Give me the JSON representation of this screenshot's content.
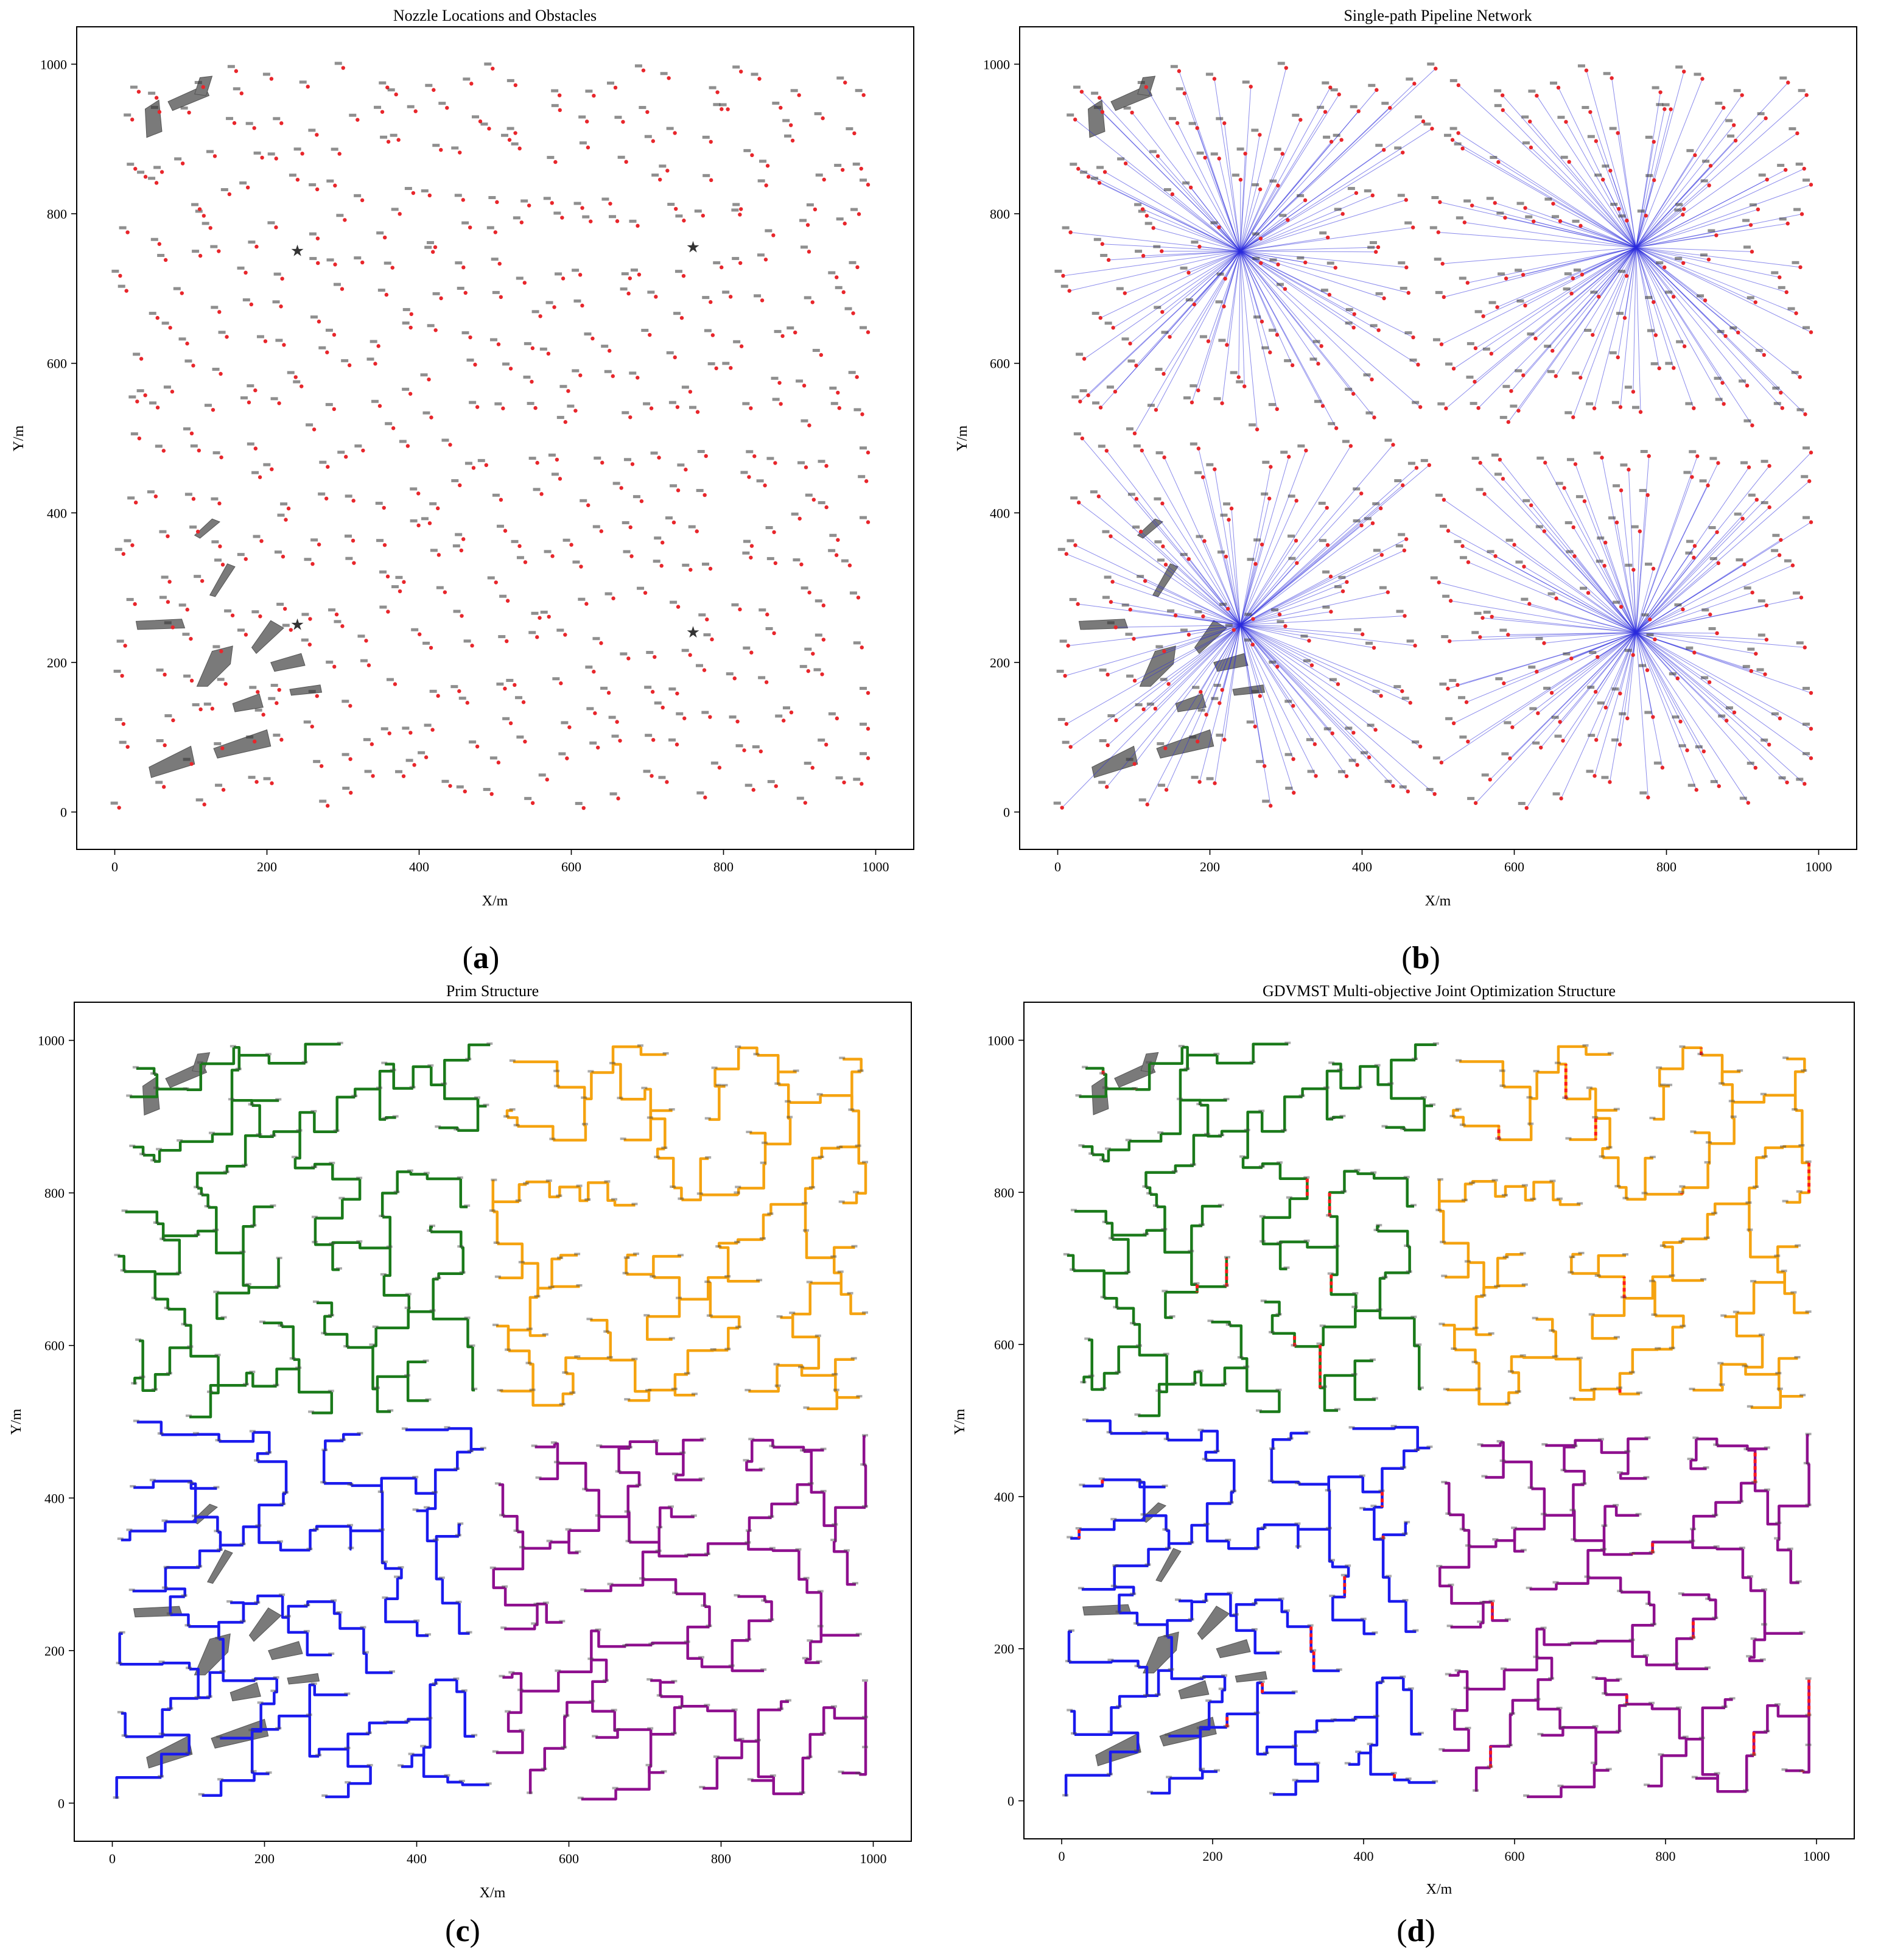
{
  "figure": {
    "panel_labels": [
      {
        "open": "(",
        "letter": "a",
        "close": ")"
      },
      {
        "open": "(",
        "letter": "b",
        "close": ")"
      },
      {
        "open": "(",
        "letter": "c",
        "close": ")"
      },
      {
        "open": "(",
        "letter": "d",
        "close": ")"
      }
    ]
  },
  "chart_data": [
    {
      "type": "scatter",
      "title": "Nozzle Locations and Obstacles",
      "xlabel": "X/m",
      "ylabel": "Y/m",
      "xlim": [
        -50,
        1050
      ],
      "ylim": [
        -50,
        1050
      ],
      "xticks": [
        0,
        200,
        400,
        600,
        800,
        1000
      ],
      "yticks": [
        0,
        200,
        400,
        600,
        800,
        1000
      ],
      "x_tick_labels": [
        "0",
        "200",
        "400",
        "600",
        "800",
        "1000"
      ],
      "y_tick_labels": [
        "0",
        "200",
        "400",
        "600",
        "800",
        "1000"
      ],
      "grid": false,
      "nozzle_count": 500,
      "nozzle_color": "#e8262b",
      "label_color": "#333333",
      "obstacle_color": "#7a7a7a",
      "source_points": [
        [
          240,
          750
        ],
        [
          760,
          755
        ],
        [
          240,
          250
        ],
        [
          760,
          240
        ]
      ],
      "source_marker": "star",
      "obstacles": [
        [
          [
            40,
            940
          ],
          [
            58,
            952
          ],
          [
            62,
            910
          ],
          [
            42,
            902
          ]
        ],
        [
          [
            70,
            950
          ],
          [
            118,
            972
          ],
          [
            124,
            958
          ],
          [
            76,
            938
          ]
        ],
        [
          [
            105,
            960
          ],
          [
            112,
            982
          ],
          [
            128,
            984
          ],
          [
            120,
            958
          ]
        ],
        [
          [
            105,
            370
          ],
          [
            128,
            392
          ],
          [
            138,
            388
          ],
          [
            112,
            366
          ]
        ],
        [
          [
            125,
            290
          ],
          [
            148,
            332
          ],
          [
            158,
            328
          ],
          [
            132,
            288
          ]
        ],
        [
          [
            28,
            255
          ],
          [
            88,
            258
          ],
          [
            92,
            246
          ],
          [
            30,
            244
          ]
        ],
        [
          [
            108,
            168
          ],
          [
            128,
            215
          ],
          [
            155,
            222
          ],
          [
            152,
            198
          ],
          [
            122,
            168
          ]
        ],
        [
          [
            180,
            220
          ],
          [
            205,
            256
          ],
          [
            222,
            246
          ],
          [
            186,
            212
          ]
        ],
        [
          [
            205,
            200
          ],
          [
            245,
            212
          ],
          [
            250,
            196
          ],
          [
            210,
            188
          ]
        ],
        [
          [
            230,
            164
          ],
          [
            270,
            170
          ],
          [
            272,
            160
          ],
          [
            232,
            156
          ]
        ],
        [
          [
            155,
            145
          ],
          [
            190,
            158
          ],
          [
            195,
            140
          ],
          [
            158,
            134
          ]
        ],
        [
          [
            45,
            60
          ],
          [
            100,
            88
          ],
          [
            105,
            64
          ],
          [
            48,
            46
          ]
        ],
        [
          [
            130,
            85
          ],
          [
            200,
            110
          ],
          [
            205,
            88
          ],
          [
            135,
            72
          ]
        ]
      ]
    },
    {
      "type": "scatter",
      "title": "Single-path Pipeline Network",
      "xlabel": "X/m",
      "ylabel": "Y/m",
      "xlim": [
        -50,
        1050
      ],
      "ylim": [
        -50,
        1050
      ],
      "xticks": [
        0,
        200,
        400,
        600,
        800,
        1000
      ],
      "yticks": [
        0,
        200,
        400,
        600,
        800,
        1000
      ],
      "x_tick_labels": [
        "0",
        "200",
        "400",
        "600",
        "800",
        "1000"
      ],
      "y_tick_labels": [
        "0",
        "200",
        "400",
        "600",
        "800",
        "1000"
      ],
      "grid": false,
      "line_color": "#2b2bdc",
      "hubs": [
        [
          240,
          750
        ],
        [
          760,
          755
        ],
        [
          240,
          250
        ],
        [
          760,
          240
        ]
      ]
    },
    {
      "type": "line",
      "title": "Prim Structure",
      "xlabel": "X/m",
      "ylabel": "Y/m",
      "xlim": [
        -50,
        1050
      ],
      "ylim": [
        -50,
        1050
      ],
      "xticks": [
        0,
        200,
        400,
        600,
        800,
        1000
      ],
      "yticks": [
        0,
        200,
        400,
        600,
        800,
        1000
      ],
      "x_tick_labels": [
        "0",
        "200",
        "400",
        "600",
        "800",
        "1000"
      ],
      "y_tick_labels": [
        "0",
        "200",
        "400",
        "600",
        "800",
        "1000"
      ],
      "grid": false,
      "series": [
        {
          "color": "#1a7a1a",
          "region": [
            0,
            500,
            500,
            1000
          ]
        },
        {
          "color": "#f5a310",
          "region": [
            500,
            500,
            1000,
            1000
          ]
        },
        {
          "color": "#1a1aee",
          "region": [
            0,
            0,
            500,
            500
          ]
        },
        {
          "color": "#8e0f8e",
          "region": [
            500,
            0,
            1000,
            500
          ]
        }
      ]
    },
    {
      "type": "line",
      "title": "GDVMST Multi-objective Joint Optimization Structure",
      "xlabel": "X/m",
      "ylabel": "Y/m",
      "xlim": [
        -50,
        1050
      ],
      "ylim": [
        -50,
        1050
      ],
      "xticks": [
        0,
        200,
        400,
        600,
        800,
        1000
      ],
      "yticks": [
        0,
        200,
        400,
        600,
        800,
        1000
      ],
      "x_tick_labels": [
        "0",
        "200",
        "400",
        "600",
        "800",
        "1000"
      ],
      "y_tick_labels": [
        "0",
        "200",
        "400",
        "600",
        "800",
        "1000"
      ],
      "grid": false,
      "optimized_edge_color": "#ff1a1a",
      "series": [
        {
          "color": "#1a7a1a",
          "region": [
            0,
            500,
            500,
            1000
          ]
        },
        {
          "color": "#f5a310",
          "region": [
            500,
            500,
            1000,
            1000
          ]
        },
        {
          "color": "#1a1aee",
          "region": [
            0,
            0,
            500,
            500
          ]
        },
        {
          "color": "#8e0f8e",
          "region": [
            500,
            0,
            1000,
            500
          ]
        }
      ]
    }
  ]
}
